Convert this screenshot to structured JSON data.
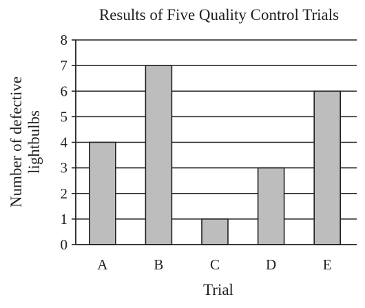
{
  "chart_data": {
    "type": "bar",
    "title": "Results of Five Quality Control Trials",
    "xlabel": "Trial",
    "ylabel_lines": [
      "Number of defective",
      "lightbulbs"
    ],
    "categories": [
      "A",
      "B",
      "C",
      "D",
      "E"
    ],
    "values": [
      4,
      7,
      1,
      3,
      6
    ],
    "ylim": [
      0,
      8
    ],
    "yticks": [
      "0",
      "1",
      "2",
      "3",
      "4",
      "5",
      "6",
      "7",
      "8"
    ],
    "grid": true,
    "bar_color": "#bdbdbd",
    "line_color": "#231f20"
  }
}
